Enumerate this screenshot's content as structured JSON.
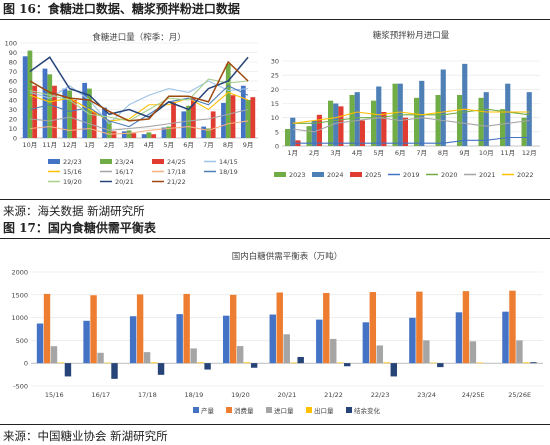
{
  "figure16": {
    "title": "图 16：食糖进口数据、糖浆预拌粉进口数据",
    "source": "来源：海关数据  新湖研究所"
  },
  "figure17": {
    "title": "图 17：国内食糖供需平衡表",
    "source": "来源：中国糖业协会  新湖研究所"
  },
  "colors": {
    "c2223": "#4472C4",
    "c2324": "#70AD47",
    "c2425": "#E03C31",
    "c1415": "#9DC3E6",
    "c1516": "#FFC000",
    "c1617": "#A5A5A5",
    "c1718": "#F4B183",
    "c1819": "#4E7FB5",
    "c1920": "#A9D18E",
    "c2021": "#264478",
    "c2122": "#9E480E"
  },
  "chart_data": [
    {
      "type": "bar",
      "title": "食糖进口量（榨季：月）",
      "categories": [
        "10月",
        "11月",
        "12月",
        "1月",
        "2月",
        "3月",
        "4月",
        "5月",
        "6月",
        "7月",
        "8月",
        "9月"
      ],
      "ylim": [
        0,
        100
      ],
      "yticks": [
        0,
        10,
        20,
        30,
        40,
        50,
        60,
        70,
        80,
        90,
        100
      ],
      "bar_series": [
        {
          "name": "22/23",
          "color": "#4472C4",
          "values": [
            86,
            73,
            52,
            58,
            32,
            7,
            4,
            11,
            28,
            12,
            37,
            55
          ]
        },
        {
          "name": "23/24",
          "color": "#70AD47",
          "values": [
            92,
            67,
            50,
            52,
            18,
            8,
            6,
            12,
            34,
            10,
            78,
            40
          ]
        },
        {
          "name": "24/25",
          "color": "#E03C31",
          "values": [
            55,
            55,
            40,
            28,
            7,
            5,
            4,
            38,
            42,
            28,
            45,
            43
          ]
        }
      ],
      "line_series": [
        {
          "name": "14/15",
          "color": "#9DC3E6",
          "values": [
            48,
            42,
            55,
            40,
            15,
            35,
            45,
            52,
            48,
            60,
            50,
            52
          ]
        },
        {
          "name": "15/16",
          "color": "#FFC000",
          "values": [
            45,
            38,
            42,
            30,
            18,
            20,
            35,
            35,
            42,
            30,
            48,
            40
          ]
        },
        {
          "name": "16/17",
          "color": "#A5A5A5",
          "values": [
            20,
            18,
            22,
            15,
            8,
            10,
            12,
            15,
            18,
            20,
            25,
            30
          ]
        },
        {
          "name": "17/18",
          "color": "#F4B183",
          "values": [
            10,
            12,
            8,
            10,
            4,
            5,
            8,
            10,
            12,
            8,
            15,
            18
          ]
        },
        {
          "name": "18/19",
          "color": "#4E7FB5",
          "values": [
            30,
            35,
            28,
            32,
            18,
            12,
            25,
            38,
            42,
            35,
            55,
            45
          ]
        },
        {
          "name": "19/20",
          "color": "#A9D18E",
          "values": [
            50,
            45,
            40,
            25,
            22,
            18,
            30,
            42,
            40,
            62,
            58,
            60
          ]
        },
        {
          "name": "20/21",
          "color": "#264478",
          "values": [
            70,
            85,
            52,
            45,
            25,
            30,
            22,
            38,
            30,
            52,
            60,
            85
          ]
        },
        {
          "name": "21/22",
          "color": "#9E480E",
          "values": [
            60,
            48,
            42,
            40,
            28,
            18,
            20,
            44,
            44,
            38,
            80,
            60
          ]
        }
      ]
    },
    {
      "type": "bar",
      "title": "糖浆预拌粉月进口量",
      "categories": [
        "1月",
        "2月",
        "3月",
        "4月",
        "5月",
        "6月",
        "7月",
        "8月",
        "9月",
        "10月",
        "11月",
        "12月"
      ],
      "ylim": [
        0,
        30
      ],
      "yticks": [
        0,
        5,
        10,
        15,
        20,
        25,
        30
      ],
      "bar_series": [
        {
          "name": "2023",
          "color": "#70AD47",
          "values": [
            6,
            7,
            16,
            18,
            16,
            22,
            17,
            18,
            18,
            17,
            13,
            10
          ]
        },
        {
          "name": "2024",
          "color": "#4E7FB5",
          "values": [
            10,
            9,
            15,
            19,
            21,
            22,
            23,
            27,
            29,
            19,
            22,
            19
          ]
        },
        {
          "name": "2025",
          "color": "#E03C31",
          "values": [
            2,
            11,
            14,
            9,
            12,
            10,
            0,
            0,
            0,
            0,
            0,
            0
          ]
        }
      ],
      "line_series": [
        {
          "name": "2019",
          "color": "#4472C4",
          "values": [
            1,
            1,
            1,
            1,
            1,
            1,
            1,
            1,
            2,
            2,
            3,
            3
          ]
        },
        {
          "name": "2020",
          "color": "#70AD47",
          "values": [
            8,
            8,
            9,
            10,
            10,
            11,
            11,
            11,
            12,
            13,
            12,
            11
          ]
        },
        {
          "name": "2021",
          "color": "#A5A5A5",
          "values": [
            6,
            5,
            8,
            9,
            10,
            9,
            10,
            9,
            8,
            7,
            8,
            9
          ]
        },
        {
          "name": "2022",
          "color": "#FFC000",
          "values": [
            8,
            9,
            10,
            12,
            11,
            12,
            11,
            12,
            13,
            12,
            12,
            12
          ]
        }
      ]
    },
    {
      "type": "bar",
      "title": "国内白糖供需平衡表（万吨）",
      "categories": [
        "15/16",
        "16/17",
        "17/18",
        "18/19",
        "19/20",
        "20/21",
        "21/22",
        "22/23",
        "23/24",
        "24/25E",
        "25/26E"
      ],
      "ylim": [
        -500,
        2000
      ],
      "yticks": [
        -500,
        0,
        500,
        1000,
        1500,
        2000
      ],
      "series": [
        {
          "name": "产量",
          "color": "#4472C4",
          "values": [
            870,
            930,
            1030,
            1076,
            1042,
            1067,
            956,
            897,
            996,
            1116,
            1130
          ]
        },
        {
          "name": "消费量",
          "color": "#ED7D31",
          "values": [
            1520,
            1490,
            1510,
            1520,
            1500,
            1550,
            1540,
            1560,
            1570,
            1580,
            1590
          ]
        },
        {
          "name": "进口量",
          "color": "#A5A5A5",
          "values": [
            373,
            229,
            243,
            324,
            376,
            634,
            533,
            389,
            500,
            480,
            500
          ]
        },
        {
          "name": "出口量",
          "color": "#FFC000",
          "values": [
            15,
            12,
            18,
            19,
            18,
            14,
            16,
            18,
            12,
            15,
            18
          ]
        },
        {
          "name": "结余变化",
          "color": "#264478",
          "values": [
            -290,
            -343,
            -255,
            -139,
            -100,
            137,
            -67,
            -290,
            -86,
            1,
            22
          ]
        }
      ]
    }
  ]
}
